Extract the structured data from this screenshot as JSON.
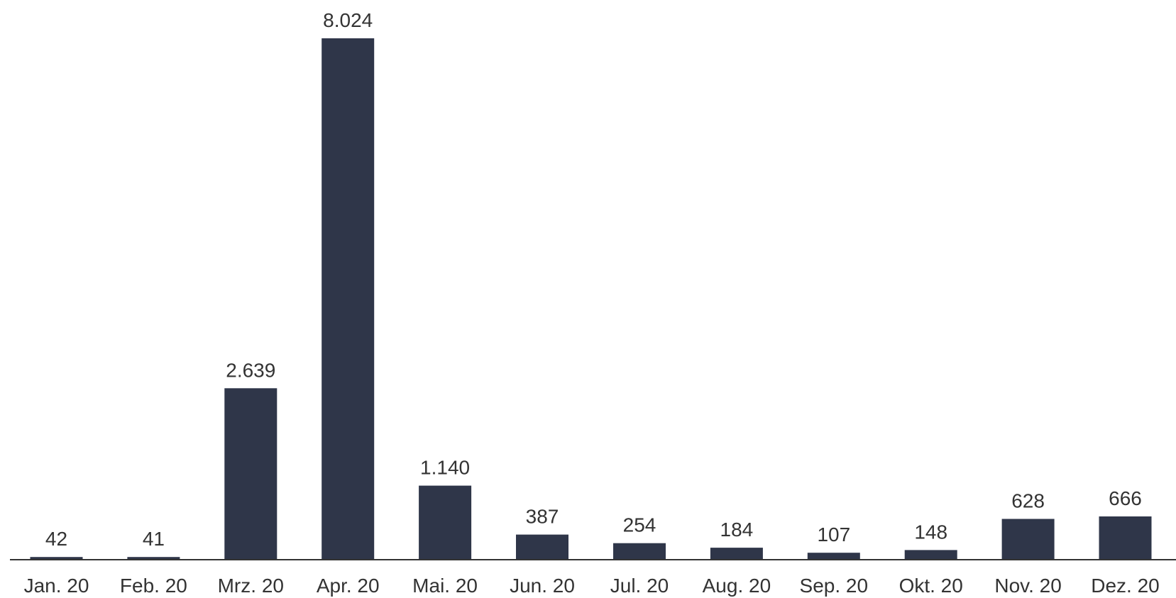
{
  "chart_data": {
    "type": "bar",
    "categories": [
      "Jan. 20",
      "Feb. 20",
      "Mrz. 20",
      "Apr. 20",
      "Mai. 20",
      "Jun. 20",
      "Jul. 20",
      "Aug. 20",
      "Sep. 20",
      "Okt. 20",
      "Nov. 20",
      "Dez. 20"
    ],
    "values": [
      42,
      41,
      2639,
      8024,
      1140,
      387,
      254,
      184,
      107,
      148,
      628,
      666
    ],
    "value_labels": [
      "42",
      "41",
      "2.639",
      "8.024",
      "1.140",
      "387",
      "254",
      "184",
      "107",
      "148",
      "628",
      "666"
    ],
    "title": "",
    "xlabel": "",
    "ylabel": "",
    "ylim": [
      0,
      8024
    ],
    "grid": false,
    "bar_color": "#2f3649",
    "axis_color": "#333333"
  }
}
